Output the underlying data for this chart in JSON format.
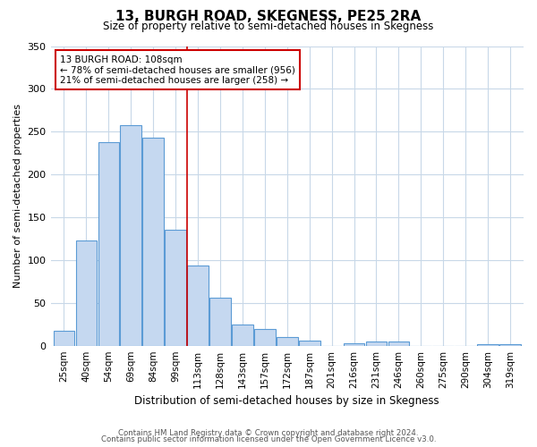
{
  "title": "13, BURGH ROAD, SKEGNESS, PE25 2RA",
  "subtitle": "Size of property relative to semi-detached houses in Skegness",
  "xlabel": "Distribution of semi-detached houses by size in Skegness",
  "ylabel": "Number of semi-detached properties",
  "bin_labels": [
    "25sqm",
    "40sqm",
    "54sqm",
    "69sqm",
    "84sqm",
    "99sqm",
    "113sqm",
    "128sqm",
    "143sqm",
    "157sqm",
    "172sqm",
    "187sqm",
    "201sqm",
    "216sqm",
    "231sqm",
    "246sqm",
    "260sqm",
    "275sqm",
    "290sqm",
    "304sqm",
    "319sqm"
  ],
  "bar_heights": [
    17,
    123,
    238,
    258,
    243,
    135,
    94,
    56,
    25,
    20,
    10,
    6,
    0,
    3,
    5,
    5,
    0,
    0,
    0,
    2,
    2
  ],
  "bar_color": "#c5d8f0",
  "bar_edge_color": "#5b9bd5",
  "marker_line_color": "#cc0000",
  "annotation_title": "13 BURGH ROAD: 108sqm",
  "annotation_line1": "← 78% of semi-detached houses are smaller (956)",
  "annotation_line2": "21% of semi-detached houses are larger (258) →",
  "annotation_box_color": "#ffffff",
  "annotation_box_edge": "#cc0000",
  "ylim": [
    0,
    350
  ],
  "yticks": [
    0,
    50,
    100,
    150,
    200,
    250,
    300,
    350
  ],
  "footer_line1": "Contains HM Land Registry data © Crown copyright and database right 2024.",
  "footer_line2": "Contains public sector information licensed under the Open Government Licence v3.0.",
  "bg_color": "#ffffff",
  "grid_color": "#c8d8e8"
}
